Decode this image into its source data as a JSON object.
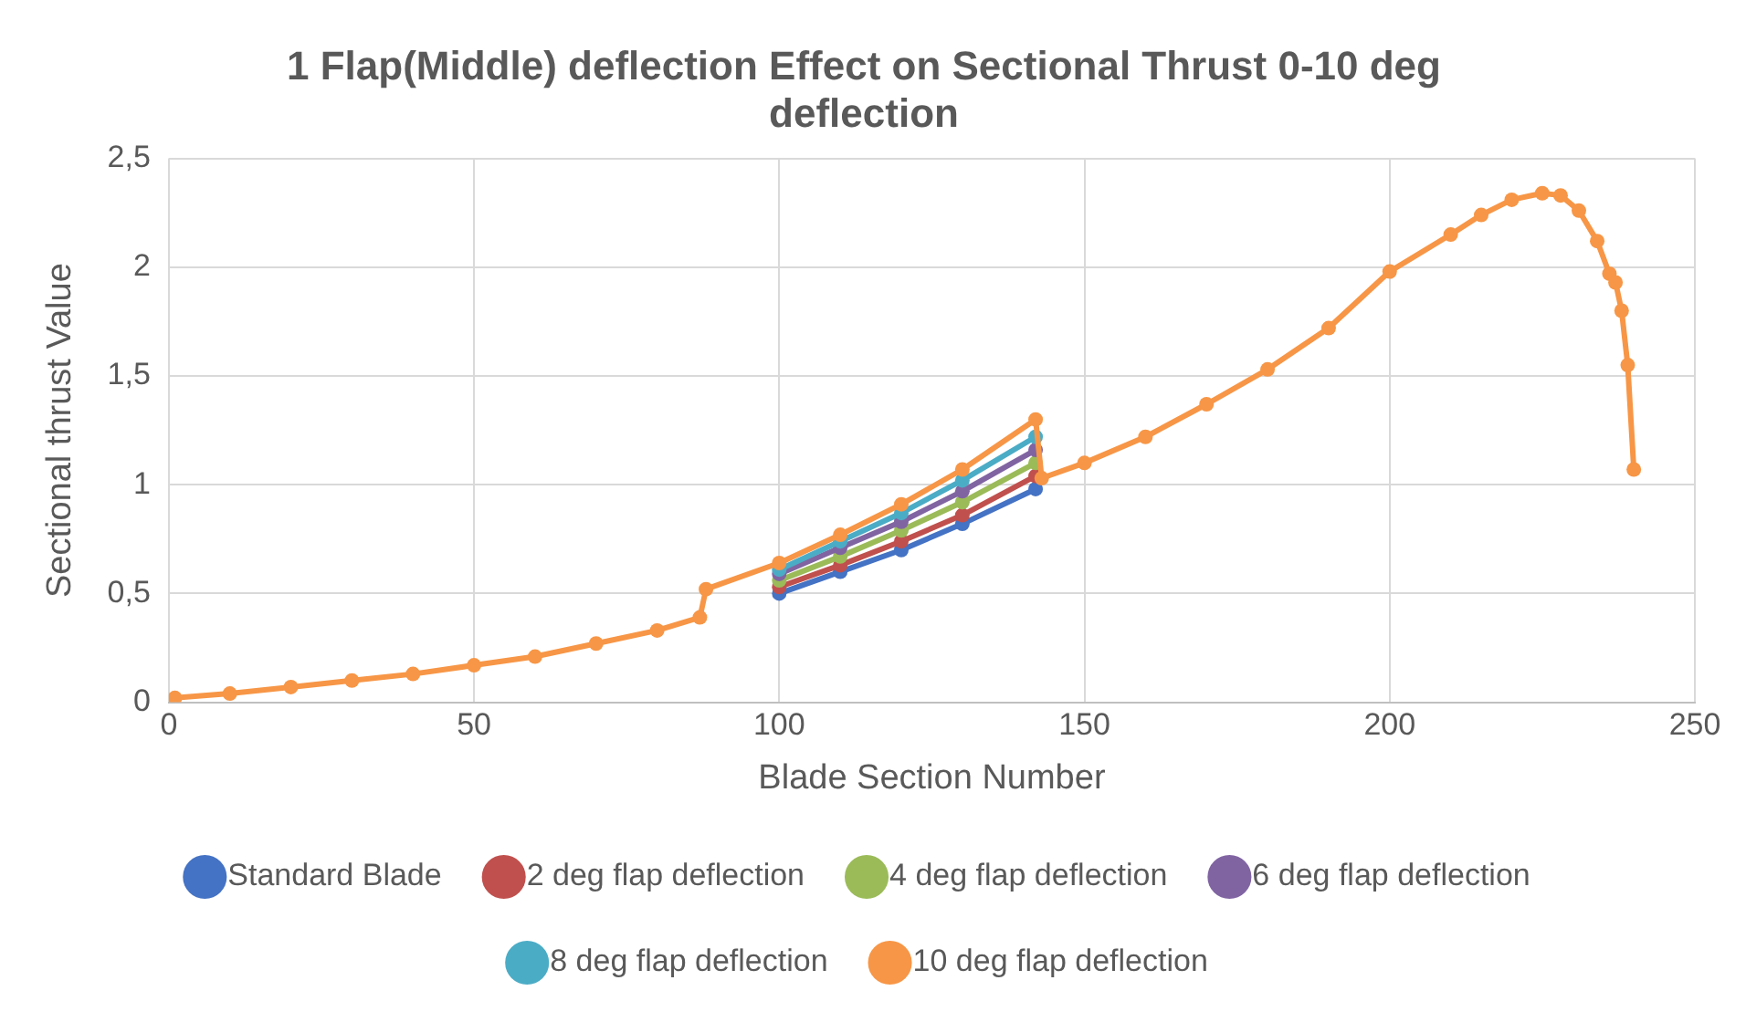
{
  "chart_data": {
    "type": "line",
    "title": "1 Flap(Middle) deflection Effect on Sectional Thrust 0-10 deg deflection",
    "xlabel": "Blade Section Number",
    "ylabel": "Sectional thrust Value",
    "xlim": [
      0,
      250
    ],
    "xticks": [
      0,
      50,
      100,
      150,
      200,
      250
    ],
    "ylim": [
      0,
      2.5
    ],
    "yticks": [
      0,
      {
        "value": 0.5,
        "label": "0,5"
      },
      1,
      {
        "value": 1.5,
        "label": "1,5"
      },
      2,
      {
        "value": 2.5,
        "label": "2,5"
      }
    ],
    "grid": true,
    "legend": "bottom",
    "marker": "circle",
    "series": [
      {
        "name": "Standard Blade",
        "color": "#4472c4",
        "x": [
          100,
          110,
          120,
          130,
          142
        ],
        "values": [
          0.5,
          0.6,
          0.7,
          0.82,
          0.98
        ]
      },
      {
        "name": "2 deg flap deflection",
        "color": "#c0504d",
        "x": [
          100,
          110,
          120,
          130,
          142
        ],
        "values": [
          0.53,
          0.63,
          0.74,
          0.86,
          1.04
        ]
      },
      {
        "name": "4 deg flap deflection",
        "color": "#9bbb59",
        "x": [
          100,
          110,
          120,
          130,
          142
        ],
        "values": [
          0.56,
          0.67,
          0.79,
          0.92,
          1.1
        ]
      },
      {
        "name": "6 deg flap deflection",
        "color": "#8064a2",
        "x": [
          100,
          110,
          120,
          130,
          142
        ],
        "values": [
          0.59,
          0.71,
          0.83,
          0.97,
          1.16
        ]
      },
      {
        "name": "8 deg flap deflection",
        "color": "#4bacc6",
        "x": [
          100,
          110,
          120,
          130,
          142
        ],
        "values": [
          0.61,
          0.74,
          0.87,
          1.02,
          1.22
        ]
      },
      {
        "name": "10 deg flap deflection",
        "color": "#f79646",
        "x": [
          1,
          10,
          20,
          30,
          40,
          50,
          60,
          70,
          80,
          87,
          88,
          100,
          110,
          120,
          130,
          142,
          143,
          150,
          160,
          170,
          180,
          190,
          200,
          210,
          215,
          220,
          225,
          228,
          231,
          234,
          236,
          237,
          238,
          239,
          240
        ],
        "values": [
          0.02,
          0.04,
          0.07,
          0.1,
          0.13,
          0.17,
          0.21,
          0.27,
          0.33,
          0.39,
          0.52,
          0.64,
          0.77,
          0.91,
          1.07,
          1.3,
          1.03,
          1.1,
          1.22,
          1.37,
          1.53,
          1.72,
          1.98,
          2.15,
          2.24,
          2.31,
          2.34,
          2.33,
          2.26,
          2.12,
          1.97,
          1.93,
          1.8,
          1.55,
          1.07
        ]
      }
    ]
  }
}
